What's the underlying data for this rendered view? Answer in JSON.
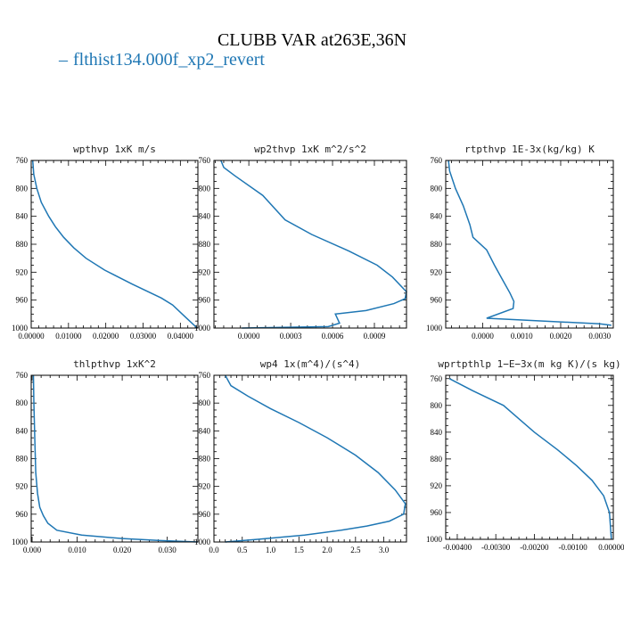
{
  "figure": {
    "title": "CLUBB VAR at263E,36N",
    "legend": {
      "dash": "–",
      "label": "flthist134.000f_xp2_revert",
      "color": "#1f77b4"
    }
  },
  "chart_data": [
    {
      "type": "line",
      "title": "wpthvp  1xK m/s",
      "xlim": [
        0,
        0.0447
      ],
      "ylim": [
        760,
        1000
      ],
      "y_inverted": true,
      "x_ticks": [
        0,
        0.01,
        0.02,
        0.03,
        0.04
      ],
      "x_tick_labels": [
        "0.00000",
        "0.01000",
        "0.02000",
        "0.03000",
        "0.04000"
      ],
      "y_ticks": [
        760,
        800,
        840,
        880,
        920,
        960,
        1000
      ],
      "y_tick_labels": [
        "760",
        "800",
        "840",
        "880",
        "920",
        "960",
        "1000"
      ],
      "series": [
        {
          "color": "#1f77b4",
          "x": [
            0.0004,
            0.0007,
            0.0015,
            0.0027,
            0.0047,
            0.0065,
            0.0087,
            0.0114,
            0.0147,
            0.0197,
            0.027,
            0.0349,
            0.0379,
            0.0405,
            0.0425,
            0.0445
          ],
          "y": [
            760,
            780,
            800,
            820,
            840,
            855,
            870,
            885,
            900,
            917,
            937,
            957,
            967,
            980,
            990,
            1000
          ]
        }
      ]
    },
    {
      "type": "line",
      "title": "wp2thvp  1xK m^2/s^2",
      "xlim": [
        -0.00025,
        0.00113
      ],
      "ylim": [
        760,
        1000
      ],
      "y_inverted": true,
      "x_ticks": [
        0,
        0.0003,
        0.0006,
        0.0009
      ],
      "x_tick_labels": [
        "0.0000",
        "0.0003",
        "0.0006",
        "0.0009"
      ],
      "y_ticks": [
        760,
        800,
        840,
        880,
        920,
        960,
        1000
      ],
      "y_tick_labels": [
        "760",
        "800",
        "840",
        "880",
        "920",
        "960",
        "1000"
      ],
      "series": [
        {
          "color": "#1f77b4",
          "x": [
            -0.0002,
            -0.00018,
            -0.0001,
            0.0001,
            0.00026,
            0.00045,
            0.00072,
            0.00092,
            0.00103,
            0.00113,
            0.00112,
            0.00104,
            0.00084,
            0.00062,
            0.00065,
            0.00057,
            -5e-05
          ],
          "y": [
            760,
            770,
            782,
            810,
            845,
            866,
            890,
            910,
            927,
            948,
            958,
            965,
            975,
            980,
            993,
            998,
            1000
          ]
        }
      ]
    },
    {
      "type": "line",
      "title": "rtpthvp  1E-3x(kg/kg) K",
      "xlim": [
        -0.00095,
        0.00335
      ],
      "ylim": [
        760,
        1000
      ],
      "y_inverted": true,
      "x_ticks": [
        0,
        0.001,
        0.002,
        0.003
      ],
      "x_tick_labels": [
        "0.0000",
        "0.0010",
        "0.0020",
        "0.0030"
      ],
      "y_ticks": [
        760,
        800,
        840,
        880,
        920,
        960,
        1000
      ],
      "y_tick_labels": [
        "760",
        "800",
        "840",
        "880",
        "920",
        "960",
        "1000"
      ],
      "series": [
        {
          "color": "#1f77b4",
          "x": [
            -0.00088,
            -0.00085,
            -0.0007,
            -0.0005,
            -0.00033,
            -0.00025,
            0.0001,
            0.0003,
            0.0005,
            0.0007,
            0.0008,
            0.00078,
            0.0001,
            0.003,
            0.0033
          ],
          "y": [
            760,
            775,
            800,
            825,
            852,
            870,
            888,
            910,
            930,
            950,
            962,
            972,
            986,
            994,
            996
          ]
        }
      ]
    },
    {
      "type": "line",
      "title": "thlpthvp  1xK^2",
      "xlim": [
        -0.0002,
        0.0368
      ],
      "ylim": [
        760,
        1000
      ],
      "y_inverted": true,
      "x_ticks": [
        0,
        0.01,
        0.02,
        0.03
      ],
      "x_tick_labels": [
        "0.000",
        "0.010",
        "0.020",
        "0.030"
      ],
      "y_ticks": [
        760,
        800,
        840,
        880,
        920,
        960,
        1000
      ],
      "y_tick_labels": [
        "760",
        "800",
        "840",
        "880",
        "920",
        "960",
        "1000"
      ],
      "series": [
        {
          "color": "#1f77b4",
          "x": [
            0.0003,
            0.0004,
            0.0006,
            0.0008,
            0.0012,
            0.0017,
            0.0025,
            0.0035,
            0.0055,
            0.011,
            0.02,
            0.0285,
            0.0368
          ],
          "y": [
            760,
            800,
            850,
            900,
            930,
            950,
            962,
            973,
            983,
            990,
            995,
            998,
            1000
          ]
        }
      ]
    },
    {
      "type": "line",
      "title": "wp4  1x(m^4)/(s^4)",
      "xlim": [
        0,
        3.4
      ],
      "ylim": [
        760,
        1000
      ],
      "y_inverted": true,
      "x_ticks": [
        0,
        0.5,
        1,
        1.5,
        2,
        2.5,
        3
      ],
      "x_tick_labels": [
        "0.0",
        "0.5",
        "1.0",
        "1.5",
        "2.0",
        "2.5",
        "3.0"
      ],
      "y_ticks": [
        760,
        800,
        840,
        880,
        920,
        960,
        1000
      ],
      "y_tick_labels": [
        "760",
        "800",
        "840",
        "880",
        "920",
        "960",
        "1000"
      ],
      "series": [
        {
          "color": "#1f77b4",
          "x": [
            0.2,
            0.3,
            0.6,
            1.0,
            1.5,
            2.0,
            2.5,
            2.9,
            3.2,
            3.38,
            3.35,
            3.1,
            2.7,
            2.25,
            1.6,
            0.8,
            0.2
          ],
          "y": [
            760,
            775,
            790,
            808,
            828,
            850,
            875,
            900,
            925,
            945,
            960,
            970,
            977,
            983,
            990,
            996,
            1000
          ]
        }
      ]
    },
    {
      "type": "line",
      "title": "wprtpthlp  1−E−3x(m kg K)/(s kg)",
      "xlim": [
        -0.0043,
        5e-05
      ],
      "ylim": [
        755,
        1000
      ],
      "y_inverted": true,
      "x_ticks": [
        -0.004,
        -0.003,
        -0.002,
        -0.001,
        0
      ],
      "x_tick_labels": [
        "-0.00400",
        "-0.00300",
        "-0.00200",
        "-0.00100",
        "0.00000"
      ],
      "y_ticks": [
        760,
        800,
        840,
        880,
        920,
        960,
        1000
      ],
      "y_tick_labels": [
        "760",
        "800",
        "840",
        "880",
        "920",
        "960",
        "1000"
      ],
      "series": [
        {
          "color": "#1f77b4",
          "x": [
            -0.0042,
            -0.0036,
            -0.0028,
            -0.0024,
            -0.002,
            -0.0014,
            -0.0009,
            -0.0005,
            -0.0002,
            -5e-05,
            0
          ],
          "y": [
            760,
            778,
            800,
            820,
            840,
            866,
            890,
            912,
            935,
            960,
            1000
          ]
        }
      ]
    }
  ]
}
